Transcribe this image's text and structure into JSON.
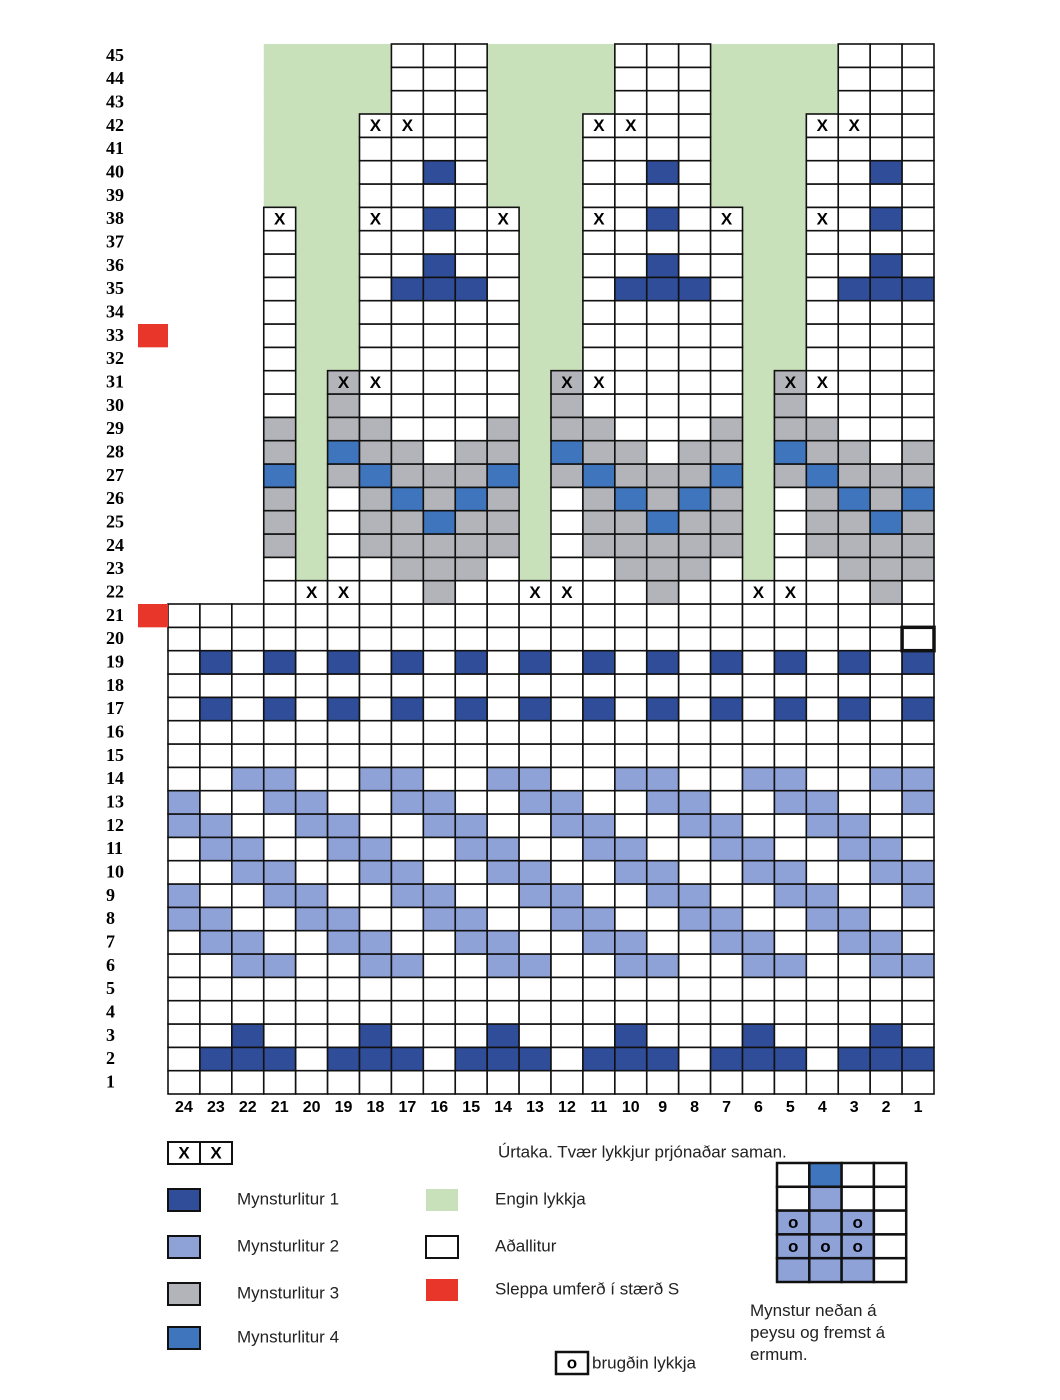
{
  "row_numbers": [
    1,
    2,
    3,
    4,
    5,
    6,
    7,
    8,
    9,
    10,
    11,
    12,
    13,
    14,
    15,
    16,
    17,
    18,
    19,
    20,
    21,
    22,
    23,
    24,
    25,
    26,
    27,
    28,
    29,
    30,
    31,
    32,
    33,
    34,
    35,
    36,
    37,
    38,
    39,
    40,
    41,
    42,
    43,
    44,
    45
  ],
  "column_numbers": [
    24,
    23,
    22,
    21,
    20,
    19,
    18,
    17,
    16,
    15,
    14,
    13,
    12,
    11,
    10,
    9,
    8,
    7,
    6,
    5,
    4,
    3,
    2,
    1
  ],
  "decrease_mark": "X",
  "legend": {
    "decrease": "Úrtaka. Tvær lykkjur prjónaðar saman.",
    "items": [
      {
        "label": "Mynsturlitur 1",
        "color": "#2f4d98"
      },
      {
        "label": "Mynsturlitur 2",
        "color": "#8fa2d7"
      },
      {
        "label": "Mynsturlitur 3",
        "color": "#b2b4b9"
      },
      {
        "label": "Mynsturlitur 4",
        "color": "#3f75bd"
      },
      {
        "label": "Engin lykkja",
        "color": "#c9e1ba"
      },
      {
        "label": "Aðallitur",
        "color": "#ffffff"
      },
      {
        "label": "Sleppa umferð í stærð S",
        "color": "#e8372a"
      }
    ]
  },
  "inset_caption": "Mynstur neðan á peysu og fremst á ermum.",
  "purl_mark": "o",
  "purl_label": "brugðin lykkja"
}
